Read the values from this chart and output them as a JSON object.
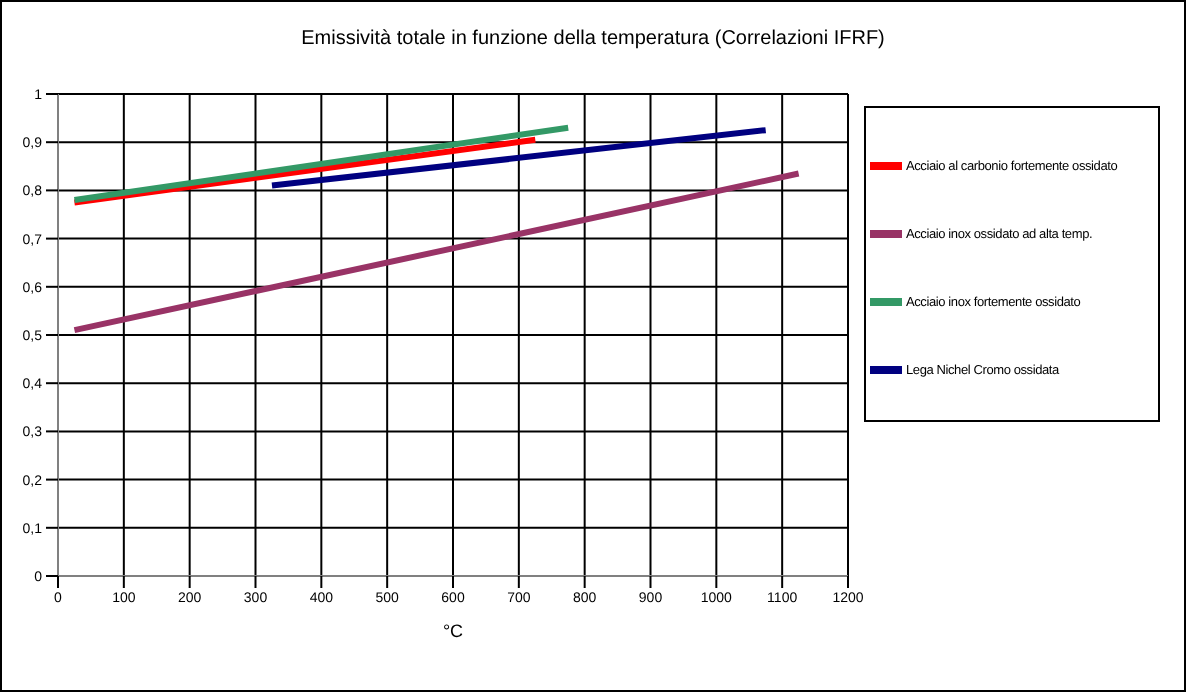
{
  "chart_data": {
    "type": "line",
    "title": "Emissività totale in funzione della temperatura (Correlazioni IFRF)",
    "xlabel": "°C",
    "xlim": [
      0,
      1200
    ],
    "xticks": [
      0,
      100,
      200,
      300,
      400,
      500,
      600,
      700,
      800,
      900,
      1000,
      1100,
      1200
    ],
    "ylim": [
      0,
      1
    ],
    "yticks": [
      0,
      {
        "value": 0.1,
        "label": "0,1"
      },
      {
        "value": 0.2,
        "label": "0,2"
      },
      {
        "value": 0.3,
        "label": "0,3"
      },
      {
        "value": 0.4,
        "label": "0,4"
      },
      {
        "value": 0.5,
        "label": "0,5"
      },
      {
        "value": 0.6,
        "label": "0,6"
      },
      {
        "value": 0.7,
        "label": "0,7"
      },
      {
        "value": 0.8,
        "label": "0,8"
      },
      {
        "value": 0.9,
        "label": "0,9"
      },
      1
    ],
    "grid": true,
    "legend": "right",
    "marker": "none",
    "line_style": "solid",
    "series": [
      {
        "name": "Acciaio al carbonio fortemente ossidato",
        "color": "#ff0000",
        "x": [
          25,
          725
        ],
        "values": [
          0.775,
          0.905
        ]
      },
      {
        "name": "Acciaio inox ossidato ad alta temp.",
        "color": "#993366",
        "x": [
          25,
          1125
        ],
        "values": [
          0.51,
          0.835
        ]
      },
      {
        "name": "Acciaio inox fortemente ossidato",
        "color": "#339966",
        "x": [
          25,
          775
        ],
        "values": [
          0.78,
          0.93
        ]
      },
      {
        "name": "Lega Nichel Cromo ossidata",
        "color": "#000080",
        "x": [
          325,
          1075
        ],
        "values": [
          0.81,
          0.925
        ]
      }
    ]
  }
}
